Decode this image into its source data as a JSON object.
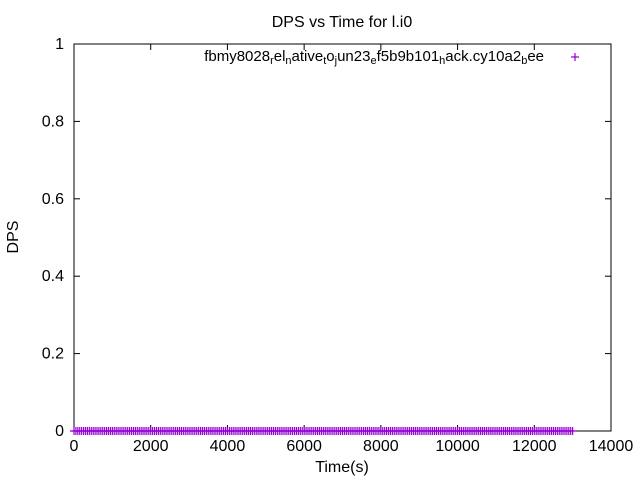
{
  "chart_data": {
    "type": "scatter",
    "title": "DPS vs Time for l.i0",
    "xlabel": "Time(s)",
    "ylabel": "DPS",
    "xlim": [
      0,
      14000
    ],
    "ylim": [
      0,
      1
    ],
    "xticks": [
      0,
      2000,
      4000,
      6000,
      8000,
      10000,
      12000,
      14000
    ],
    "yticks": [
      0,
      0.2,
      0.4,
      0.6,
      0.8,
      1
    ],
    "xtick_labels": [
      "0",
      "2000",
      "4000",
      "6000",
      "8000",
      "10000",
      "12000",
      "14000"
    ],
    "ytick_labels": [
      "0",
      "0.2",
      "0.4",
      "0.6",
      "0.8",
      "1"
    ],
    "grid": false,
    "legend_position": "top-right",
    "series": [
      {
        "name": "fbmy8028_rel_native_to_jun23_ef5b9b101_hack.cy10a2_bee",
        "legend_parts": [
          {
            "t": "fbmy8028",
            "sub": false
          },
          {
            "t": "r",
            "sub": true
          },
          {
            "t": "el",
            "sub": false
          },
          {
            "t": "n",
            "sub": true
          },
          {
            "t": "ative",
            "sub": false
          },
          {
            "t": "t",
            "sub": true
          },
          {
            "t": "o",
            "sub": false
          },
          {
            "t": "j",
            "sub": true
          },
          {
            "t": "un23",
            "sub": false
          },
          {
            "t": "e",
            "sub": true
          },
          {
            "t": "f5b9b101",
            "sub": false
          },
          {
            "t": "h",
            "sub": true
          },
          {
            "t": "ack.cy10a2",
            "sub": false
          },
          {
            "t": "b",
            "sub": true
          },
          {
            "t": "ee",
            "sub": false
          }
        ],
        "color": "#9400d3",
        "marker": "+",
        "x_start": 0,
        "x_end": 13000,
        "x_step": 50,
        "y_value": 0
      }
    ]
  }
}
